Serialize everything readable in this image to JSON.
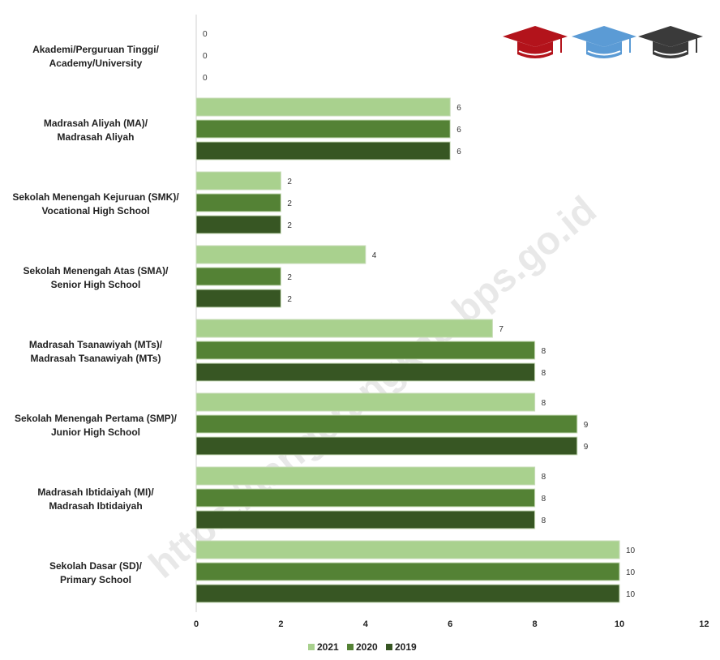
{
  "watermark": "https://tangerangkab.bps.go.id",
  "icons": [
    "graduation-cap-red-icon",
    "graduation-cap-blue-icon",
    "graduation-cap-black-icon"
  ],
  "icon_colors": [
    "#b3131b",
    "#5b9bd5",
    "#3a3a3a"
  ],
  "chart_data": {
    "type": "bar",
    "orientation": "horizontal",
    "categories": [
      [
        "Akademi/Perguruan Tinggi/",
        "Academy/University"
      ],
      [
        "Madrasah Aliyah (MA)/",
        "Madrasah Aliyah"
      ],
      [
        "Sekolah Menengah Kejuruan (SMK)/",
        "Vocational High School"
      ],
      [
        "Sekolah Menengah Atas (SMA)/",
        "Senior High School"
      ],
      [
        "Madrasah Tsanawiyah (MTs)/",
        "Madrasah Tsanawiyah (MTs)"
      ],
      [
        "Sekolah Menengah Pertama (SMP)/",
        "Junior High School"
      ],
      [
        "Madrasah Ibtidaiyah (MI)/",
        "Madrasah Ibtidaiyah"
      ],
      [
        "Sekolah Dasar (SD)/",
        "Primary School"
      ]
    ],
    "series": [
      {
        "name": "2021",
        "color": "#a9d18e",
        "values": [
          0,
          6,
          2,
          4,
          7,
          8,
          8,
          10
        ]
      },
      {
        "name": "2020",
        "color": "#548235",
        "values": [
          0,
          6,
          2,
          2,
          8,
          9,
          8,
          10
        ]
      },
      {
        "name": "2019",
        "color": "#375623",
        "values": [
          0,
          6,
          2,
          2,
          8,
          9,
          8,
          10
        ]
      }
    ],
    "xlim": [
      0,
      12
    ],
    "xticks": [
      0,
      2,
      4,
      6,
      8,
      10,
      12
    ],
    "grid": false,
    "legend_position": "bottom"
  }
}
